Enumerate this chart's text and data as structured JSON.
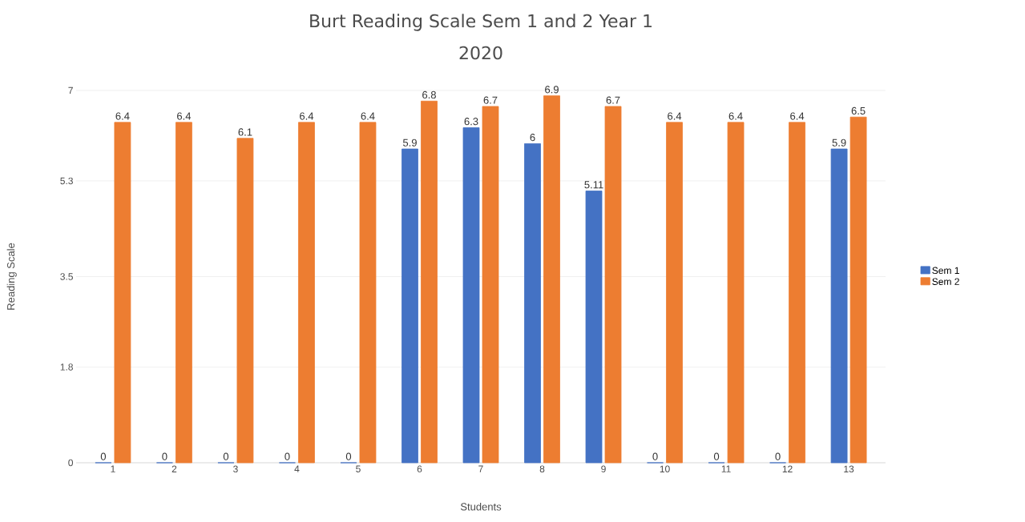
{
  "chart_data": {
    "type": "bar",
    "title": "Burt Reading Scale Sem 1 and 2 Year 1",
    "subtitle": "2020",
    "xlabel": "Students",
    "ylabel": "Reading Scale",
    "categories": [
      "1",
      "2",
      "3",
      "4",
      "5",
      "6",
      "7",
      "8",
      "9",
      "10",
      "11",
      "12",
      "13"
    ],
    "series": [
      {
        "name": "Sem 1",
        "color": "#4472c4",
        "values": [
          0,
          0,
          0,
          0,
          0,
          5.9,
          6.3,
          6,
          5.11,
          0,
          0,
          0,
          5.9
        ]
      },
      {
        "name": "Sem 2",
        "color": "#ed7d31",
        "values": [
          6.4,
          6.4,
          6.1,
          6.4,
          6.4,
          6.8,
          6.7,
          6.9,
          6.7,
          6.4,
          6.4,
          6.4,
          6.5
        ]
      }
    ],
    "ylim": [
      0,
      7
    ],
    "yticks": [
      0,
      1.8,
      3.5,
      5.3,
      7
    ],
    "grid": "y",
    "legend": "right",
    "data_labels": true
  }
}
